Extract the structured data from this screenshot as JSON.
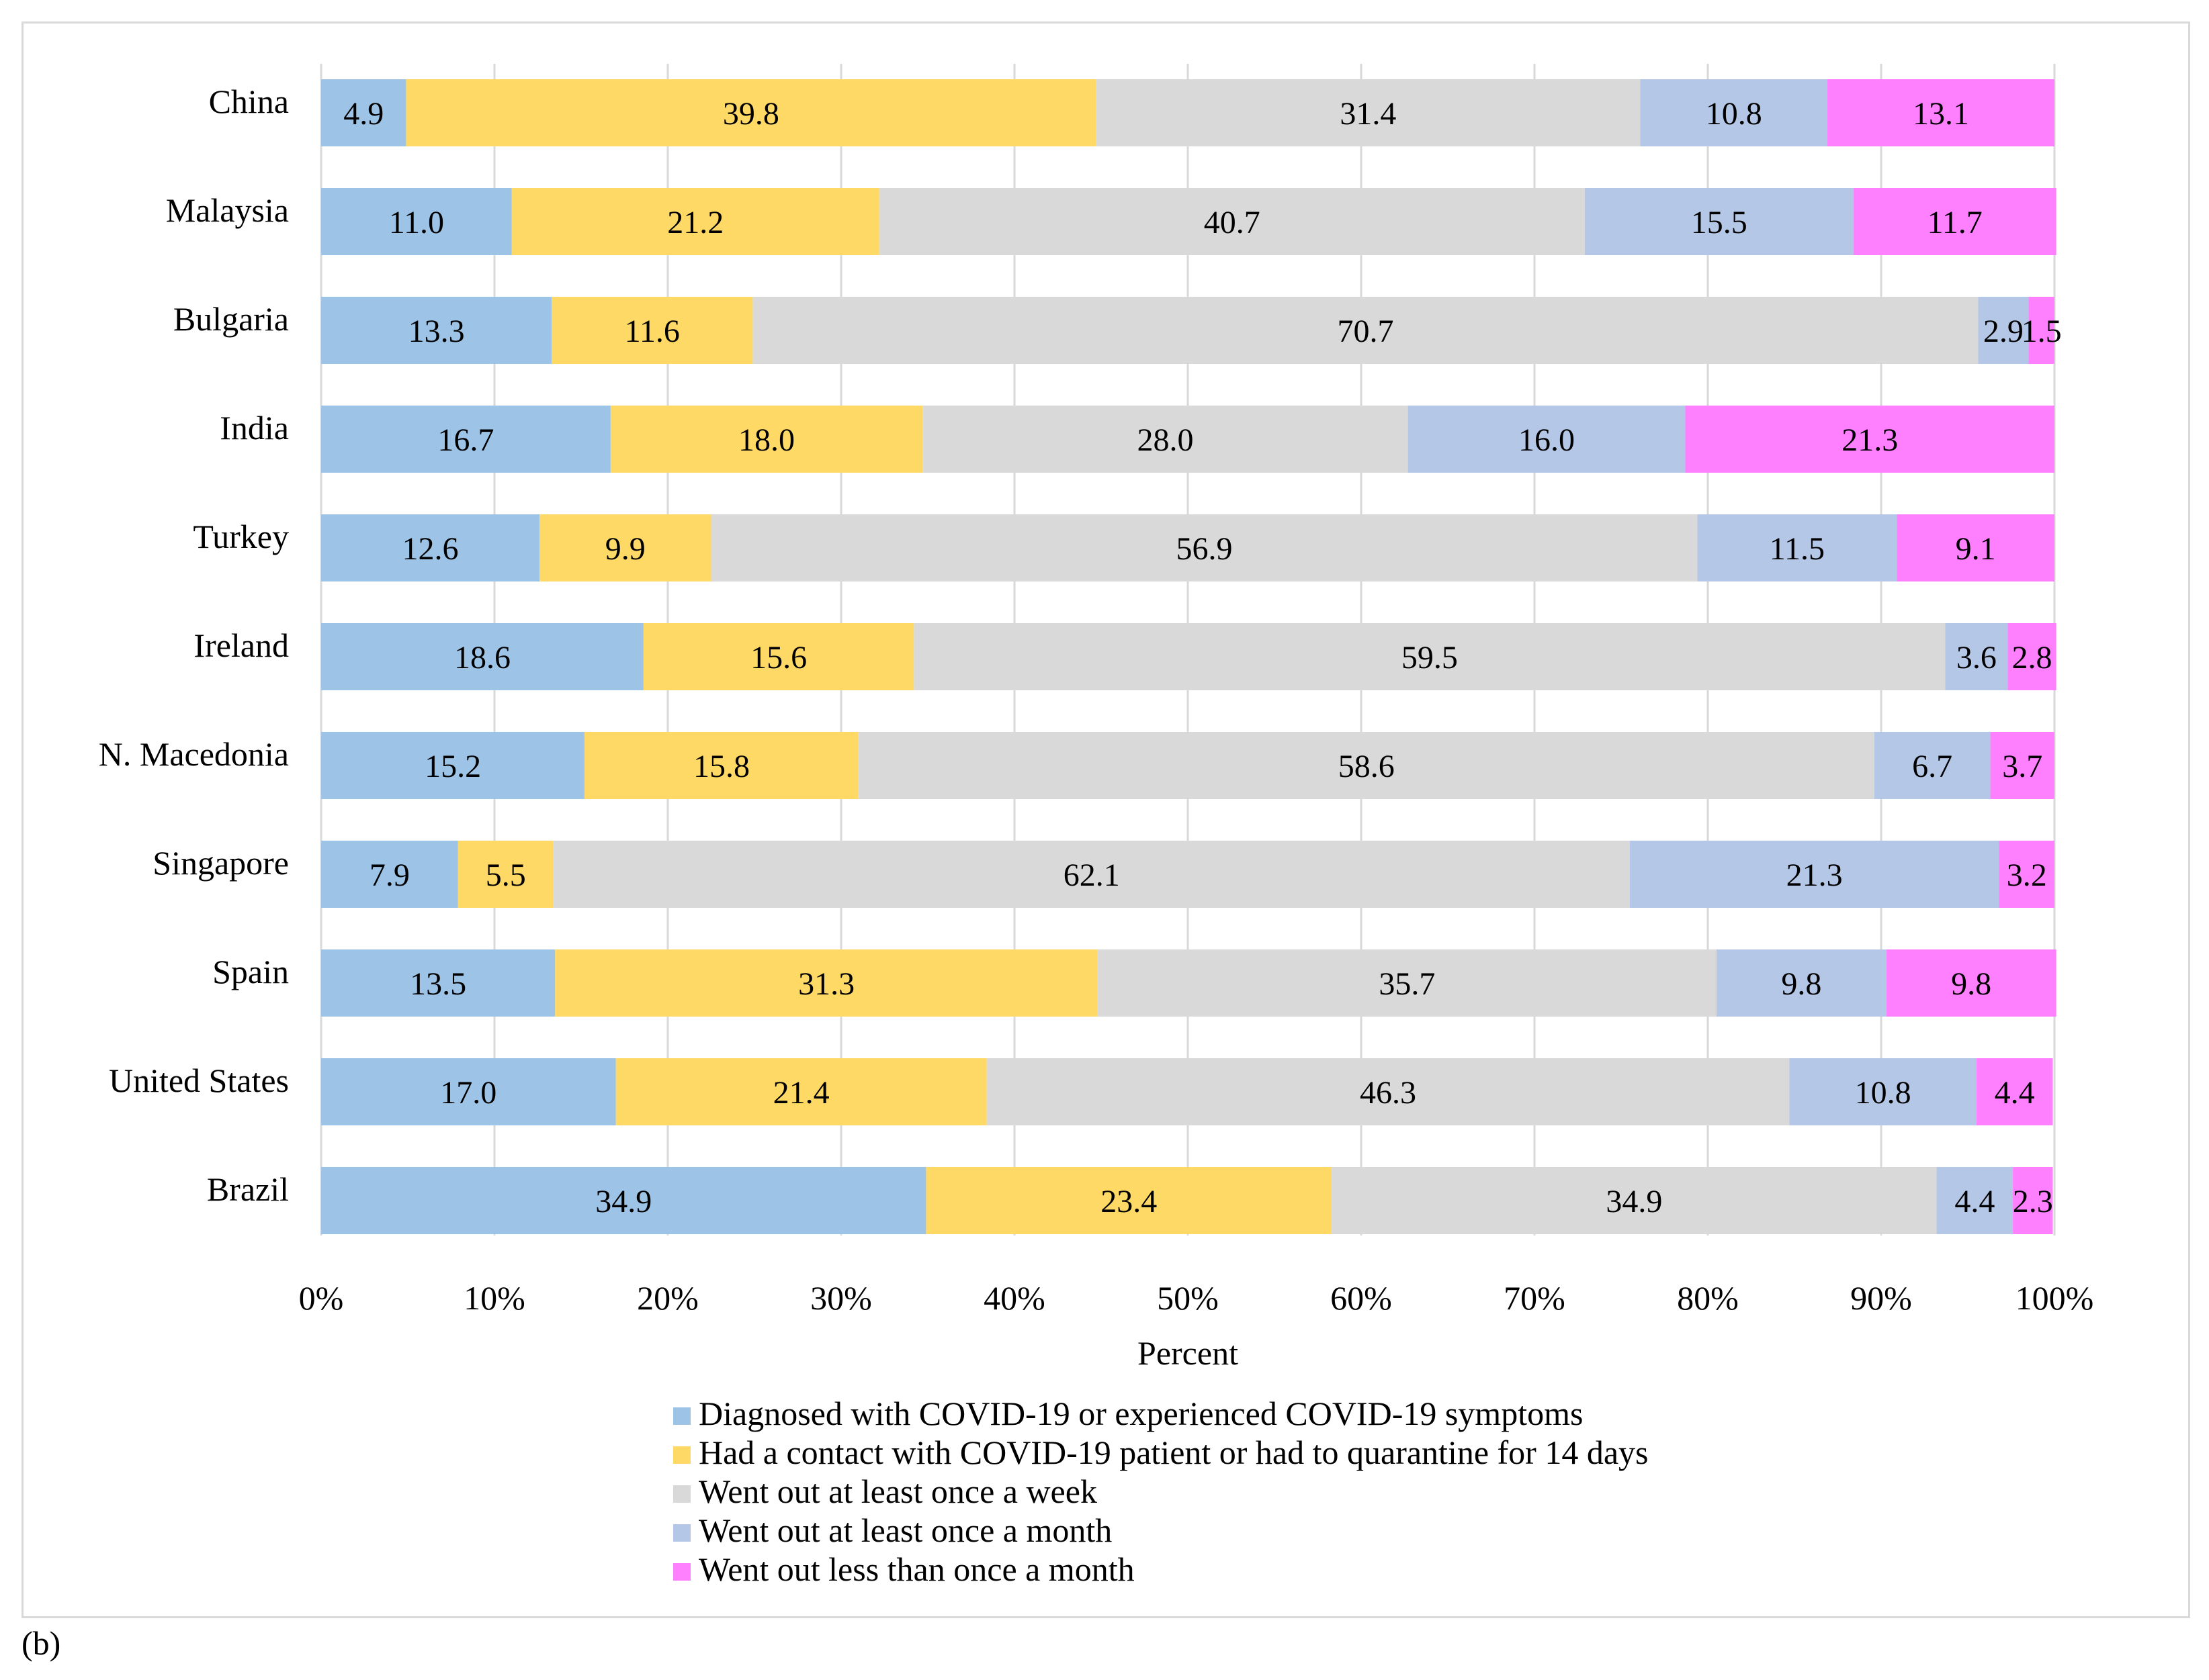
{
  "figure_label": "(b)",
  "colors": {
    "diagnosed": "#9dc3e6",
    "contact": "#ffd966",
    "weekly": "#d9d9d9",
    "monthly": "#b4c7e7",
    "less": "#ff80ff",
    "gridline": "#d9d9d9",
    "frame": "#d9d9d9",
    "text": "#000000"
  },
  "chart_data": {
    "type": "bar",
    "orientation": "horizontal",
    "stacked": "percent",
    "title": "",
    "xlabel": "Percent",
    "ylabel": "",
    "xlim": [
      0,
      100
    ],
    "x_ticks": [
      "0%",
      "10%",
      "20%",
      "30%",
      "40%",
      "50%",
      "60%",
      "70%",
      "80%",
      "90%",
      "100%"
    ],
    "grid": "vertical",
    "legend_position": "bottom",
    "categories": [
      "China",
      "Malaysia",
      "Bulgaria",
      "India",
      "Turkey",
      "Ireland",
      "N. Macedonia",
      "Singapore",
      "Spain",
      "United States",
      "Brazil"
    ],
    "series": [
      {
        "name": "Diagnosed with COVID-19 or experienced COVID-19 symptoms",
        "color_key": "diagnosed",
        "values": [
          4.9,
          11.0,
          13.3,
          16.7,
          12.6,
          18.6,
          15.2,
          7.9,
          13.5,
          17.0,
          34.9
        ],
        "labels": [
          "4.9",
          "11.0",
          "13.3",
          "16.7",
          "12.6",
          "18.6",
          "15.2",
          "7.9",
          "13.5",
          "17.0",
          "34.9"
        ]
      },
      {
        "name": "Had a contact with COVID-19 patient or had to quarantine for 14 days",
        "color_key": "contact",
        "values": [
          39.8,
          21.2,
          11.6,
          18.0,
          9.9,
          15.6,
          15.8,
          5.5,
          31.3,
          21.4,
          23.4
        ],
        "labels": [
          "39.8",
          "21.2",
          "11.6",
          "18.0",
          "9.9",
          "15.6",
          "15.8",
          "5.5",
          "31.3",
          "21.4",
          "23.4"
        ]
      },
      {
        "name": "Went out at least once a week",
        "color_key": "weekly",
        "values": [
          31.4,
          40.7,
          70.7,
          28.0,
          56.9,
          59.5,
          58.6,
          62.1,
          35.7,
          46.3,
          34.9
        ],
        "labels": [
          "31.4",
          "40.7",
          "70.7",
          "28.0",
          "56.9",
          "59.5",
          "58.6",
          "62.1",
          "35.7",
          "46.3",
          "34.9"
        ]
      },
      {
        "name": "Went out at least once a month",
        "color_key": "monthly",
        "values": [
          10.8,
          15.5,
          2.9,
          16.0,
          11.5,
          3.6,
          6.7,
          21.3,
          9.8,
          10.8,
          4.4
        ],
        "labels": [
          "10.8",
          "15.5",
          "2.9",
          "16.0",
          "11.5",
          "3.6",
          "6.7",
          "21.3",
          "9.8",
          "10.8",
          "4.4"
        ]
      },
      {
        "name": "Went out less than once a month",
        "color_key": "less",
        "values": [
          13.1,
          11.7,
          1.5,
          21.3,
          9.1,
          2.8,
          3.7,
          3.2,
          9.8,
          4.4,
          2.3
        ],
        "labels": [
          "13.1",
          "11.7",
          "1.5",
          "21.3",
          "9.1",
          "2.8",
          "3.7",
          "3.2",
          "9.8",
          "4.4",
          "2.3"
        ]
      }
    ]
  }
}
